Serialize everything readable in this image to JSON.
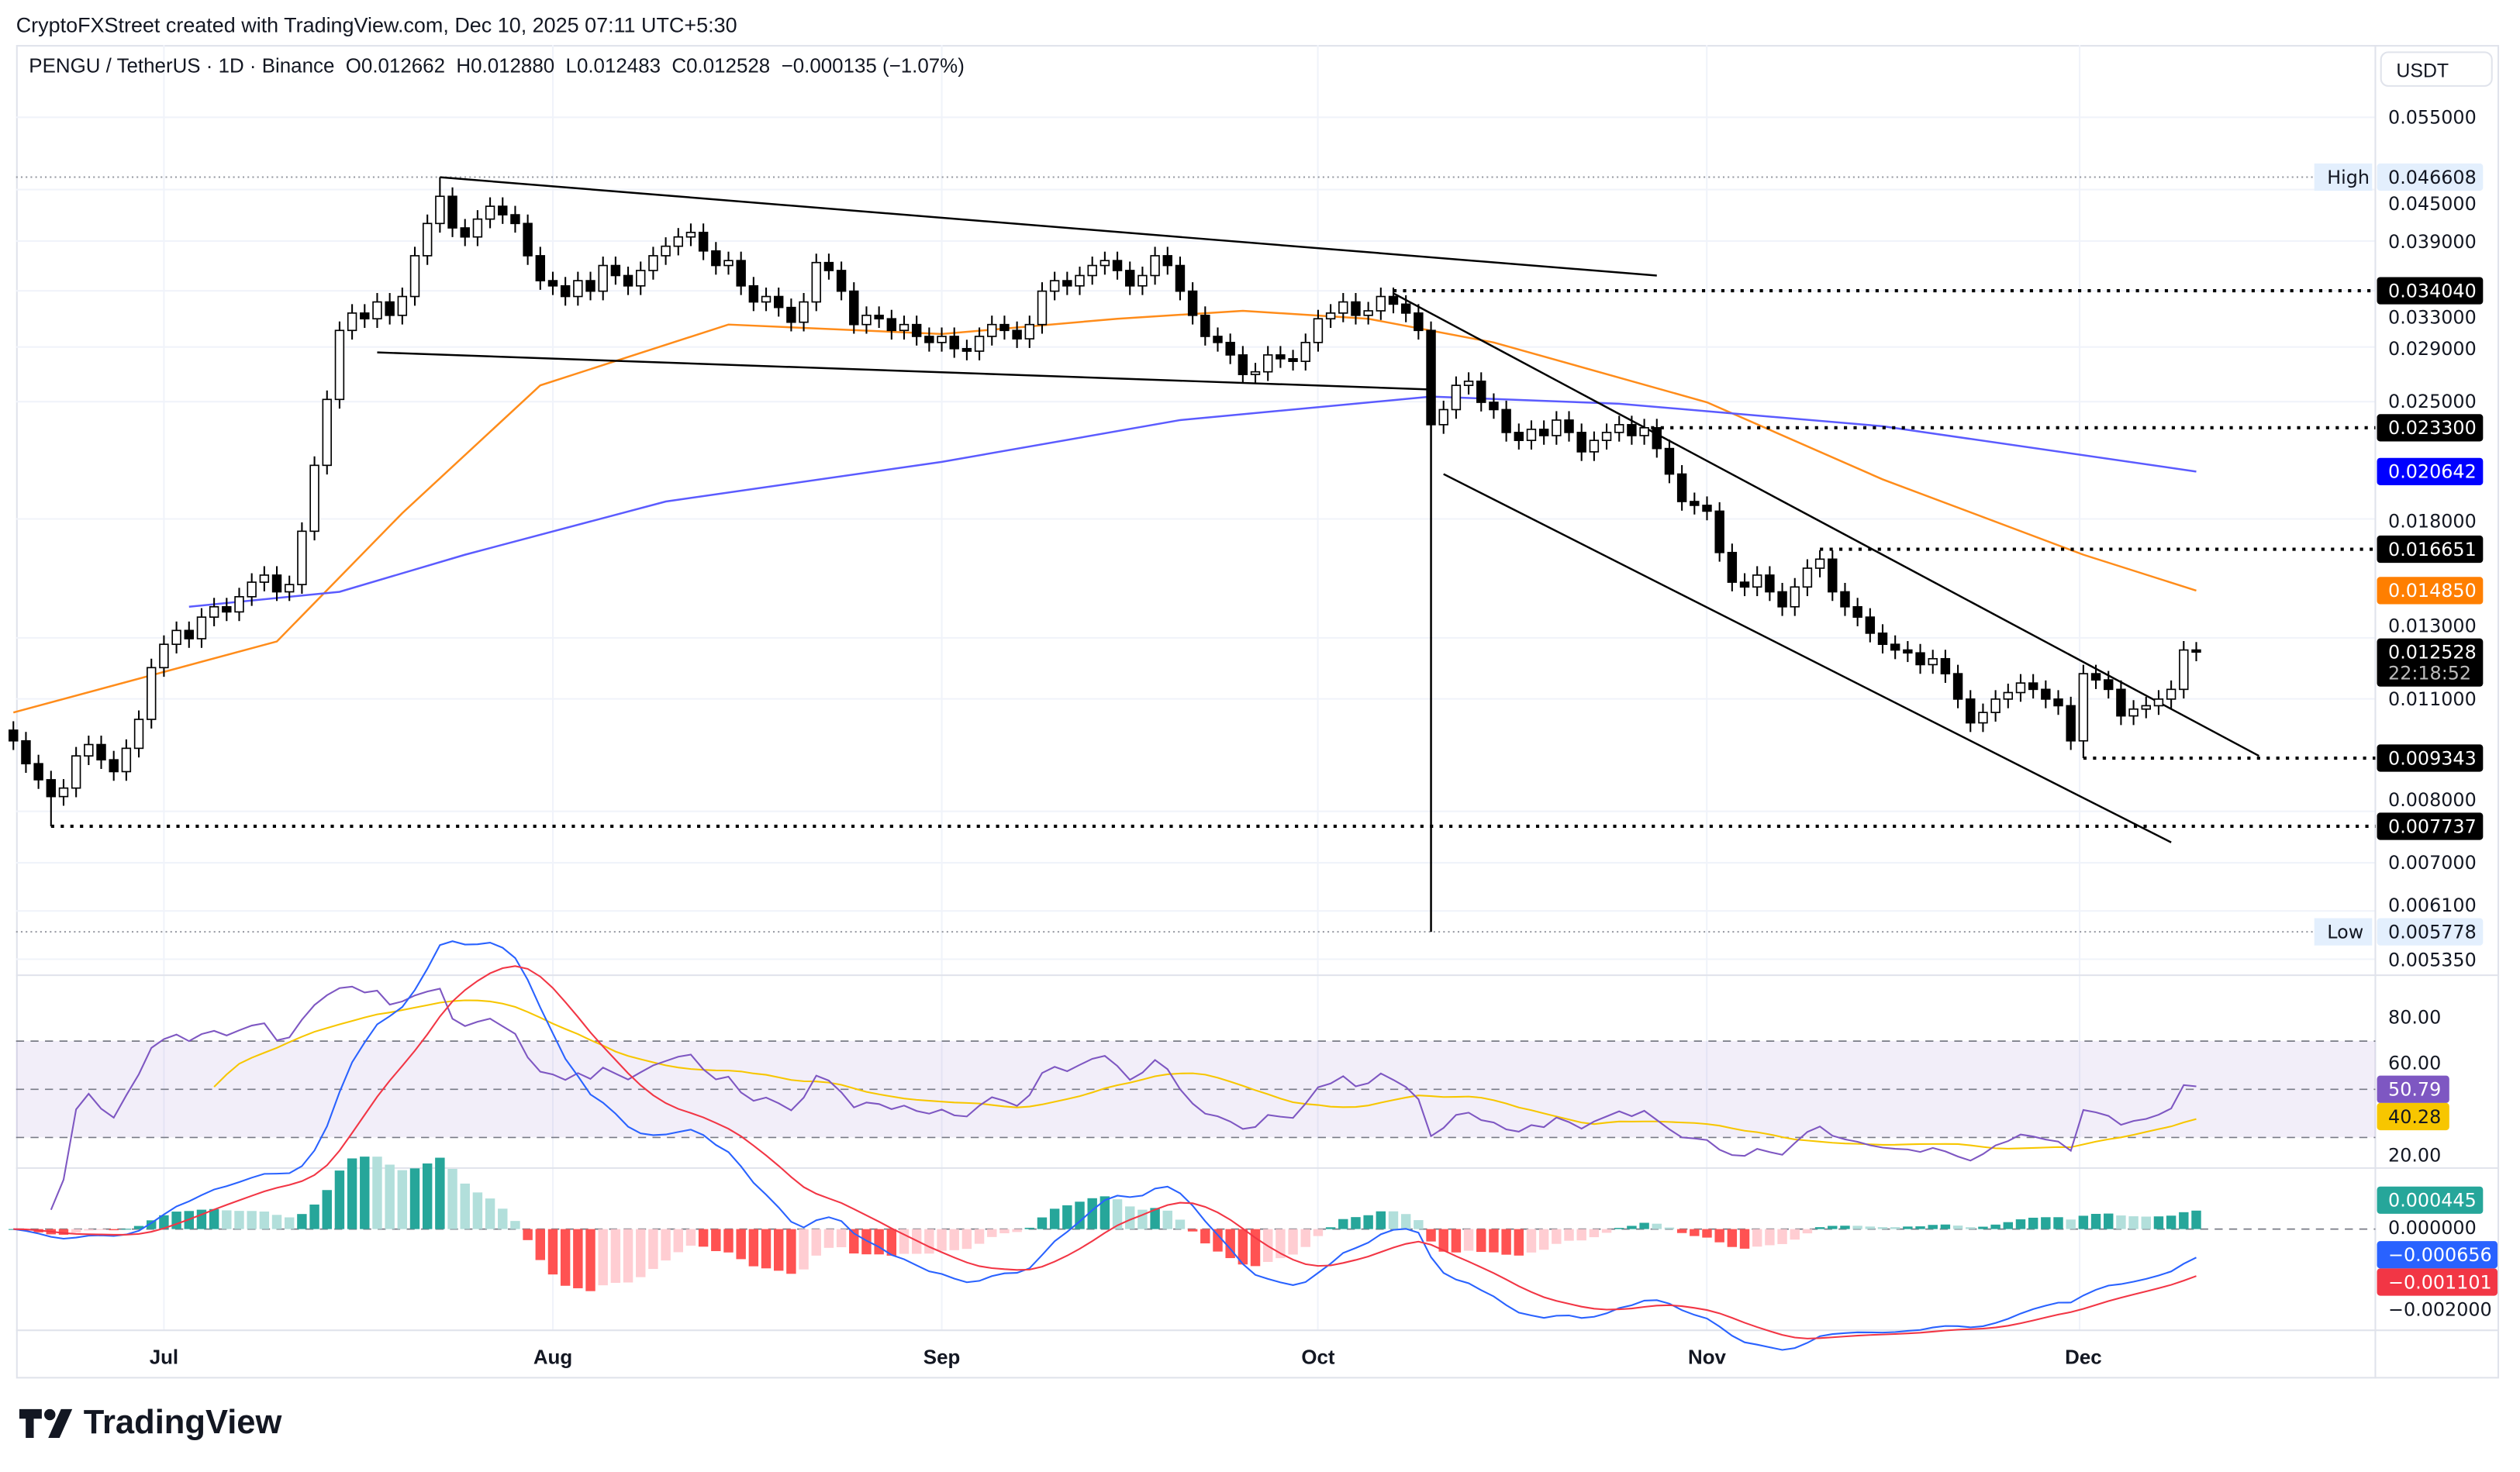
{
  "credit": "CryptoFXStreet created with TradingView.com, Dec 10, 2025 07:11 UTC+5:30",
  "legend": "PENGU / TetherUS · 1D · Binance  O0.012662  H0.012880  L0.012483  C0.012528  −0.000135 (−1.07%)",
  "currency": "USDT",
  "logo": {
    "text": "TradingView",
    "icon": "tradingview-logo-icon"
  },
  "colors": {
    "up": "#ffffff",
    "down": "#000000",
    "ma50": "#ff8c1a",
    "ma200": "#5b5bff",
    "rsi": "#7e57c2",
    "rsi_ma": "#f7c600",
    "macd": "#2962ff",
    "signal": "#f23645",
    "hist_up": "#26a69a",
    "hist_up_weak": "#b2dfdb",
    "hist_down": "#ff5252",
    "hist_down_weak": "#ffcdd2"
  },
  "price_axis": {
    "ticks": [
      "0.055000",
      "0.045000",
      "0.039000",
      "0.033000",
      "0.029000",
      "0.025000",
      "0.018000",
      "0.013000",
      "0.011000",
      "0.008000",
      "0.007000",
      "0.006100",
      "0.005350"
    ]
  },
  "price_tags": [
    {
      "label": "High",
      "value": "0.046608",
      "kind": "high"
    },
    {
      "value": "0.034040",
      "kind": "level"
    },
    {
      "value": "0.023300",
      "kind": "level"
    },
    {
      "value": "0.020642",
      "kind": "ma200"
    },
    {
      "value": "0.016651",
      "kind": "level"
    },
    {
      "value": "0.014850",
      "kind": "ma50"
    },
    {
      "value": "0.012528",
      "sub": "22:18:52",
      "kind": "last"
    },
    {
      "value": "0.009343",
      "kind": "level"
    },
    {
      "value": "0.007737",
      "kind": "level"
    },
    {
      "label": "Low",
      "value": "0.005778",
      "kind": "low"
    }
  ],
  "rsi_axis": {
    "ticks": [
      "80.00",
      "60.00",
      "20.00"
    ],
    "tags": [
      {
        "value": "50.79",
        "kind": "rsi"
      },
      {
        "value": "40.28",
        "kind": "rsi_ma"
      }
    ]
  },
  "macd_axis": {
    "ticks": [
      "0.000000",
      "−0.002000"
    ],
    "tags": [
      {
        "value": "0.000445",
        "kind": "hist"
      },
      {
        "value": "−0.000656",
        "kind": "macd"
      },
      {
        "value": "−0.001101",
        "kind": "signal"
      }
    ]
  },
  "time_axis": {
    "months": [
      {
        "label": "Jul",
        "date": "2025-07-01"
      },
      {
        "label": "Aug",
        "date": "2025-08-01"
      },
      {
        "label": "Sep",
        "date": "2025-09-01"
      },
      {
        "label": "Oct",
        "date": "2025-10-01"
      },
      {
        "label": "Nov",
        "date": "2025-11-01"
      },
      {
        "label": "Dec",
        "date": "2025-12-01"
      }
    ]
  },
  "chart_data": {
    "type": "candlestick",
    "yscale": "log",
    "ylim": [
      0.00535,
      0.055
    ],
    "start_date": "2025-06-19",
    "closes": [
      0.0098,
      0.0092,
      0.0088,
      0.0084,
      0.0086,
      0.0094,
      0.0097,
      0.0093,
      0.009,
      0.0096,
      0.0104,
      0.012,
      0.0128,
      0.0133,
      0.013,
      0.0138,
      0.0142,
      0.014,
      0.0146,
      0.0152,
      0.0155,
      0.0148,
      0.0151,
      0.0175,
      0.021,
      0.0252,
      0.0305,
      0.032,
      0.0315,
      0.033,
      0.0318,
      0.0335,
      0.0375,
      0.041,
      0.0442,
      0.0405,
      0.0395,
      0.0415,
      0.043,
      0.042,
      0.041,
      0.0375,
      0.035,
      0.0345,
      0.0335,
      0.035,
      0.034,
      0.0365,
      0.0355,
      0.0345,
      0.036,
      0.0375,
      0.0385,
      0.0395,
      0.04,
      0.038,
      0.0365,
      0.037,
      0.0345,
      0.033,
      0.0335,
      0.0325,
      0.0312,
      0.033,
      0.0368,
      0.036,
      0.034,
      0.031,
      0.0318,
      0.0315,
      0.0305,
      0.031,
      0.03,
      0.0295,
      0.03,
      0.029,
      0.0288,
      0.03,
      0.031,
      0.0305,
      0.0298,
      0.031,
      0.034,
      0.035,
      0.0345,
      0.0355,
      0.0365,
      0.037,
      0.036,
      0.0345,
      0.0355,
      0.0375,
      0.0365,
      0.034,
      0.0318,
      0.03,
      0.0295,
      0.0285,
      0.027,
      0.0272,
      0.0285,
      0.0282,
      0.028,
      0.0295,
      0.0315,
      0.032,
      0.033,
      0.0318,
      0.0322,
      0.0335,
      0.0328,
      0.032,
      0.0305,
      0.0235,
      0.0245,
      0.0262,
      0.0265,
      0.025,
      0.0245,
      0.023,
      0.0225,
      0.0232,
      0.0228,
      0.0238,
      0.023,
      0.0218,
      0.0225,
      0.023,
      0.0235,
      0.0228,
      0.0233,
      0.022,
      0.0205,
      0.019,
      0.0188,
      0.0185,
      0.0165,
      0.0152,
      0.015,
      0.0155,
      0.0148,
      0.0142,
      0.015,
      0.0158,
      0.0162,
      0.0148,
      0.0142,
      0.0138,
      0.0132,
      0.0128,
      0.0126,
      0.0125,
      0.0121,
      0.0123,
      0.0118,
      0.011,
      0.0103,
      0.0106,
      0.011,
      0.0112,
      0.0115,
      0.0113,
      0.011,
      0.0108,
      0.0098,
      0.0118,
      0.0116,
      0.0113,
      0.0105,
      0.0107,
      0.0108,
      0.011,
      0.0113,
      0.0126,
      0.012528
    ],
    "special_lows": [
      {
        "date": "2025-06-22",
        "low": 0.007737
      },
      {
        "date": "2025-10-10",
        "low": 0.005778
      },
      {
        "date": "2025-12-01",
        "low": 0.009343
      }
    ],
    "special_highs": [
      {
        "date": "2025-07-23",
        "high": 0.046608
      },
      {
        "date": "2025-12-10",
        "high": 0.01288
      }
    ],
    "ma50": [
      [
        "2025-06-19",
        0.0106
      ],
      [
        "2025-07-10",
        0.0129
      ],
      [
        "2025-07-20",
        0.0184
      ],
      [
        "2025-07-31",
        0.0262
      ],
      [
        "2025-08-15",
        0.031
      ],
      [
        "2025-09-01",
        0.0302
      ],
      [
        "2025-09-15",
        0.0315
      ],
      [
        "2025-09-25",
        0.0322
      ],
      [
        "2025-10-05",
        0.0315
      ],
      [
        "2025-10-15",
        0.0295
      ],
      [
        "2025-11-01",
        0.025
      ],
      [
        "2025-11-15",
        0.0202
      ],
      [
        "2025-12-01",
        0.0164
      ],
      [
        "2025-12-10",
        0.01485
      ]
    ],
    "ma200": [
      [
        "2025-07-03",
        0.0142
      ],
      [
        "2025-07-15",
        0.0148
      ],
      [
        "2025-07-25",
        0.0164
      ],
      [
        "2025-08-10",
        0.019
      ],
      [
        "2025-09-01",
        0.0212
      ],
      [
        "2025-09-20",
        0.0238
      ],
      [
        "2025-10-10",
        0.0254
      ],
      [
        "2025-10-25",
        0.0249
      ],
      [
        "2025-11-15",
        0.0234
      ],
      [
        "2025-12-10",
        0.020642
      ]
    ],
    "trendlines": [
      [
        [
          "2025-07-23",
          0.0466
        ],
        [
          "2025-10-28",
          0.0355
        ]
      ],
      [
        [
          "2025-07-18",
          0.0287
        ],
        [
          "2025-10-10",
          0.0259
        ]
      ],
      [
        [
          "2025-10-07",
          0.0338
        ],
        [
          "2025-12-15",
          0.0094
        ]
      ],
      [
        [
          "2025-10-11",
          0.0205
        ],
        [
          "2025-12-08",
          0.0074
        ]
      ],
      [
        [
          "2025-10-10",
          0.0259
        ],
        [
          "2025-10-10",
          0.005778
        ]
      ]
    ],
    "levels": [
      {
        "value": 0.03404,
        "from": "2025-10-07"
      },
      {
        "value": 0.0233,
        "from": "2025-10-26"
      },
      {
        "value": 0.016651,
        "from": "2025-11-10"
      },
      {
        "value": 0.009343,
        "from": "2025-12-01"
      },
      {
        "value": 0.007737,
        "from": "2025-06-22"
      }
    ],
    "rsi": {
      "period": 14,
      "ma_period": 14,
      "upper": 70,
      "middle": 50,
      "lower": 30,
      "last": 50.79,
      "last_ma": 40.28
    },
    "macd": {
      "fast": 12,
      "slow": 26,
      "signal": 9,
      "last_hist": 0.000445,
      "last_macd": -0.000656,
      "last_signal": -0.001101
    }
  }
}
